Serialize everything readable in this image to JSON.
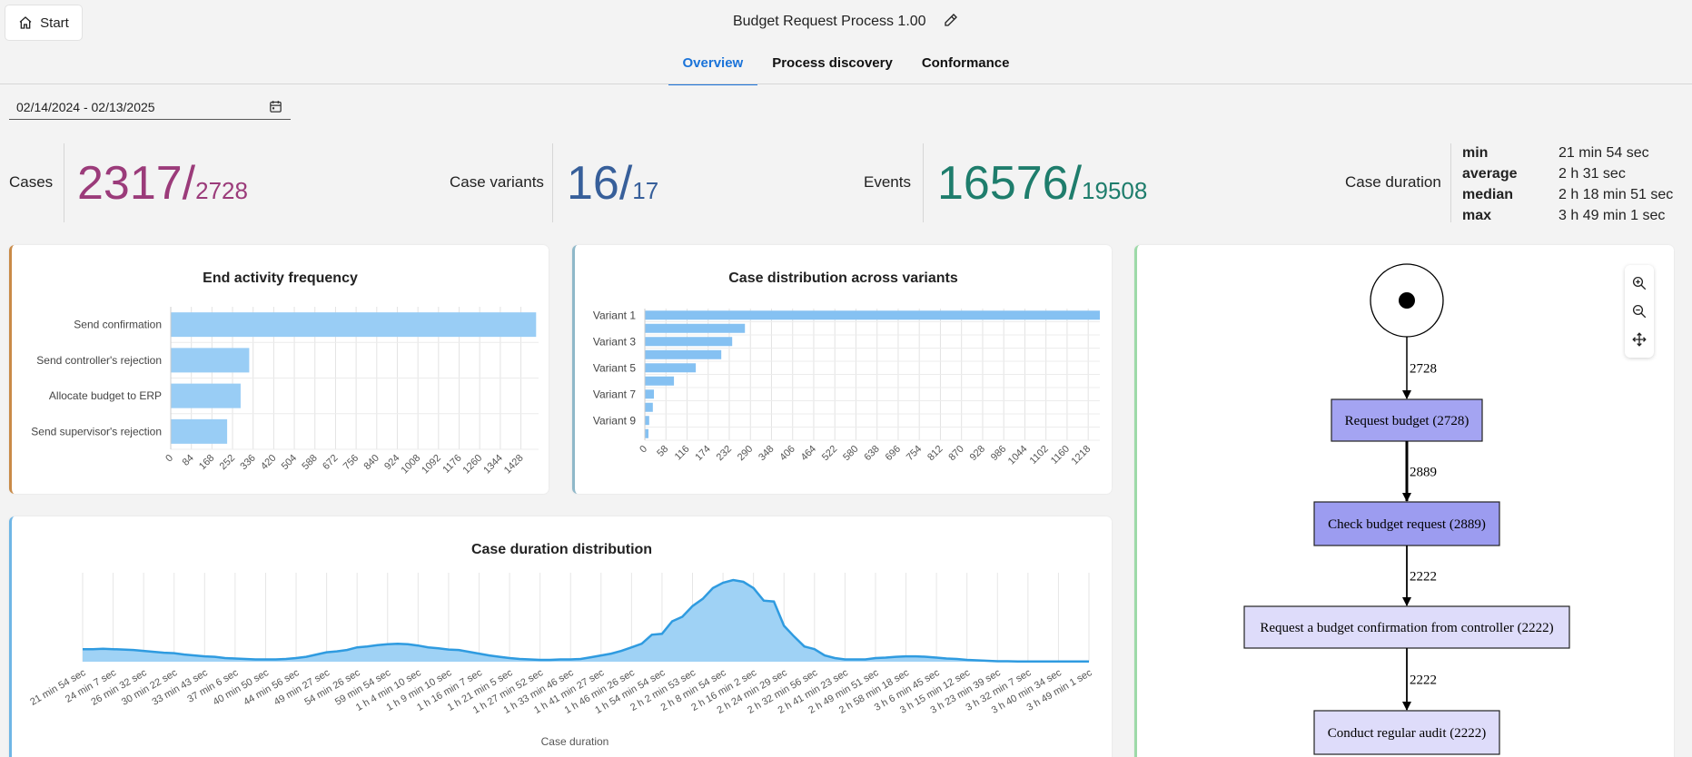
{
  "header": {
    "start_label": "Start",
    "title": "Budget Request Process 1.00"
  },
  "tabs": [
    {
      "label": "Overview",
      "active": true
    },
    {
      "label": "Process discovery",
      "active": false
    },
    {
      "label": "Conformance",
      "active": false
    }
  ],
  "date_range": "02/14/2024 - 02/13/2025",
  "kpis": {
    "cases": {
      "label": "Cases",
      "value": "2317/",
      "total": "2728",
      "color": "#9b3b7a"
    },
    "variants": {
      "label": "Case variants",
      "value": "16/",
      "total": "17",
      "color": "#375f9a"
    },
    "events": {
      "label": "Events",
      "value": "16576/",
      "total": "19508",
      "color": "#1e7d6c"
    },
    "duration": {
      "label": "Case duration",
      "rows": [
        {
          "key": "min",
          "value": "21 min 54 sec"
        },
        {
          "key": "average",
          "value": "2 h 31 sec"
        },
        {
          "key": "median",
          "value": "2 h 18 min 51 sec"
        },
        {
          "key": "max",
          "value": "3 h 49 min 1 sec"
        }
      ]
    }
  },
  "chart_data": [
    {
      "type": "bar",
      "orientation": "horizontal",
      "title": "End activity frequency",
      "categories": [
        "Send confirmation",
        "Send controller's rejection",
        "Allocate budget to ERP",
        "Send supervisor's rejection"
      ],
      "values": [
        1490,
        320,
        285,
        230
      ],
      "ticks": [
        "0",
        "84",
        "168",
        "252",
        "336",
        "420",
        "504",
        "588",
        "672",
        "756",
        "840",
        "924",
        "1008",
        "1092",
        "1176",
        "1260",
        "1344",
        "1428"
      ],
      "xlim": [
        0,
        1500
      ],
      "color": "#99cdf5"
    },
    {
      "type": "bar",
      "orientation": "horizontal",
      "title": "Case distribution across variants",
      "categories": [
        "Variant 1",
        "",
        "Variant 3",
        "",
        "Variant 5",
        "",
        "Variant 7",
        "",
        "Variant 9",
        ""
      ],
      "values": [
        1250,
        275,
        240,
        210,
        140,
        80,
        25,
        22,
        12,
        10
      ],
      "ticks": [
        "0",
        "58",
        "116",
        "174",
        "232",
        "290",
        "348",
        "406",
        "464",
        "522",
        "580",
        "638",
        "696",
        "754",
        "812",
        "870",
        "928",
        "986",
        "1044",
        "1102",
        "1160",
        "1218"
      ],
      "xlim": [
        0,
        1250
      ],
      "color": "#85c1f2"
    },
    {
      "type": "area",
      "title": "Case duration distribution",
      "xlabel": "Case duration",
      "x_ticks": [
        "21 min 54 sec",
        "24 min 7 sec",
        "26 min 32 sec",
        "30 min 22 sec",
        "33 min 43 sec",
        "37 min 6 sec",
        "40 min 50 sec",
        "44 min 56 sec",
        "49 min 27 sec",
        "54 min 26 sec",
        "59 min 54 sec",
        "1 h 4 min 10 sec",
        "1 h 9 min 10 sec",
        "1 h 16 min 7 sec",
        "1 h 21 min 5 sec",
        "1 h 27 min 52 sec",
        "1 h 33 min 46 sec",
        "1 h 41 min 27 sec",
        "1 h 46 min 26 sec",
        "1 h 54 min 54 sec",
        "2 h 2 min 53 sec",
        "2 h 8 min 54 sec",
        "2 h 16 min 2 sec",
        "2 h 24 min 29 sec",
        "2 h 32 min 56 sec",
        "2 h 41 min 23 sec",
        "2 h 49 min 51 sec",
        "2 h 58 min 18 sec",
        "3 h 6 min 45 sec",
        "3 h 15 min 12 sec",
        "3 h 23 min 39 sec",
        "3 h 32 min 7 sec",
        "3 h 40 min 34 sec",
        "3 h 49 min 1 sec"
      ],
      "values": [
        14,
        14,
        14.5,
        14,
        13.5,
        13,
        12,
        11,
        10,
        9.5,
        8,
        7,
        6,
        5.5,
        4,
        3.5,
        3,
        2.5,
        2.5,
        2.5,
        3,
        4,
        5.5,
        8,
        10.5,
        11.5,
        13,
        16,
        17,
        18.5,
        19.5,
        20,
        19.5,
        18,
        16,
        15,
        13.5,
        13,
        11,
        9,
        7,
        5.5,
        4,
        3,
        2.5,
        2,
        2,
        2.5,
        2.5,
        3,
        5,
        7,
        9,
        12,
        16,
        20,
        30,
        31,
        45,
        50,
        62,
        70,
        82,
        88,
        91,
        89,
        82,
        68,
        67,
        40,
        28,
        17,
        14,
        7,
        4,
        2.5,
        2.5,
        2.5,
        4,
        4.5,
        5.5,
        6,
        6,
        5.5,
        4.5,
        3.5,
        3,
        2,
        1.5,
        1,
        0.5,
        0.5,
        0.3,
        0.3,
        0.3,
        0.3,
        0.3,
        0.3,
        0.3,
        0.3
      ],
      "color": "#2f9be0",
      "fill": "#9fd2f5"
    }
  ],
  "process_map": {
    "counts": [
      "2728",
      "2889",
      "2222",
      "2222"
    ],
    "nodes": [
      {
        "label": "Request budget (2728)",
        "fill": "#a4a4f2"
      },
      {
        "label": "Check budget request (2889)",
        "fill": "#9c9cf0"
      },
      {
        "label": "Request a budget confirmation from controller (2222)",
        "fill": "#dedcfa"
      },
      {
        "label": "Conduct regular audit (2222)",
        "fill": "#dedcfa"
      }
    ]
  },
  "colors": {
    "card1_accent": "#c98a47",
    "card2_accent": "#8fb8c9",
    "card3_accent": "#6fb6e6",
    "card4_accent": "#9ddaa8"
  }
}
